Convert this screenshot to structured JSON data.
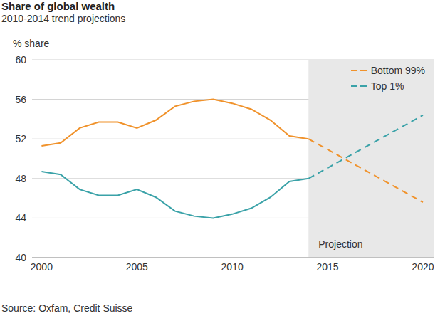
{
  "chart_data": {
    "type": "line",
    "title": "Share of global wealth",
    "subtitle": "2010-2014 trend projections",
    "y_label": "% share",
    "source": "Source: Oxfam, Credit Suisse",
    "x": [
      2000,
      2001,
      2002,
      2003,
      2004,
      2005,
      2006,
      2007,
      2008,
      2009,
      2010,
      2011,
      2012,
      2013,
      2014,
      2020
    ],
    "series": [
      {
        "name": "Bottom 99%",
        "color": "#f0922b",
        "values": [
          51.3,
          51.6,
          53.1,
          53.7,
          53.7,
          53.1,
          53.9,
          55.3,
          55.8,
          56.0,
          55.6,
          55.0,
          53.9,
          52.3,
          52.0,
          null
        ],
        "projection": [
          null,
          null,
          null,
          null,
          null,
          null,
          null,
          null,
          null,
          null,
          null,
          null,
          null,
          null,
          52.0,
          45.6
        ]
      },
      {
        "name": "Top 1%",
        "color": "#3aa2a8",
        "values": [
          48.7,
          48.4,
          46.9,
          46.3,
          46.3,
          46.9,
          46.1,
          44.7,
          44.2,
          44.0,
          44.4,
          45.0,
          46.1,
          47.7,
          48.0,
          null
        ],
        "projection": [
          null,
          null,
          null,
          null,
          null,
          null,
          null,
          null,
          null,
          null,
          null,
          null,
          null,
          null,
          48.0,
          54.4
        ]
      }
    ],
    "xlim": [
      1999.5,
      2020.6
    ],
    "xticks": [
      2000,
      2005,
      2010,
      2015,
      2020
    ],
    "ylim": [
      40,
      60
    ],
    "yticks": [
      40,
      44,
      48,
      52,
      56,
      60
    ],
    "grid": true,
    "legend": "top-right",
    "annotations": [
      {
        "text": "Projection",
        "x": 2014
      }
    ]
  }
}
